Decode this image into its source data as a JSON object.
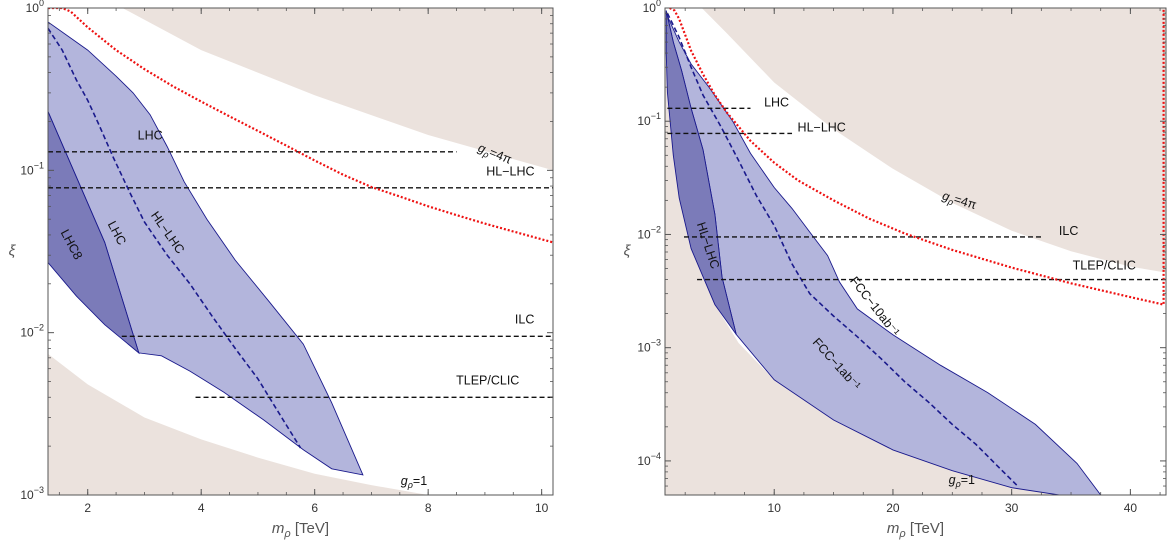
{
  "colors": {
    "excluded": "#ebe2dd",
    "band_dark": "#7b7bb9",
    "band_light": "#b3b5dc",
    "band_edge": "#1a1a8c",
    "central": "#1a1a8c",
    "naturalness": "#ee1111",
    "collider_line": "#111111",
    "axis": "#555555"
  },
  "chart_data": [
    {
      "type": "area",
      "xlabel_var": "m",
      "xlabel_sub": "ρ",
      "xlabel_unit": "[TeV]",
      "ylabel": "ξ",
      "xlim": [
        1.3,
        10.2
      ],
      "ylim": [
        0.001,
        1
      ],
      "yscale": "log",
      "grid": false,
      "xticks": [
        2,
        4,
        6,
        8,
        10
      ],
      "xtick_labels": [
        "2",
        "4",
        "6",
        "8",
        "10"
      ],
      "yticks": [
        1,
        0.1,
        0.01,
        0.001
      ],
      "ytick_labels": [
        {
          "base": "10",
          "exp": "0"
        },
        {
          "base": "10",
          "exp": "−1"
        },
        {
          "base": "10",
          "exp": "−2"
        },
        {
          "base": "10",
          "exp": "−3"
        }
      ],
      "excluded_upper": [
        [
          1.3,
          1.6
        ],
        [
          2.5,
          1.05
        ],
        [
          4,
          0.55
        ],
        [
          6,
          0.29
        ],
        [
          8,
          0.165
        ],
        [
          10.2,
          0.1
        ]
      ],
      "excluded_lower": [
        [
          1.3,
          0.0074
        ],
        [
          2,
          0.0048
        ],
        [
          3,
          0.003
        ],
        [
          4,
          0.0022
        ],
        [
          5,
          0.0017
        ],
        [
          6,
          0.00135
        ],
        [
          7,
          0.00115
        ],
        [
          8,
          0.001
        ]
      ],
      "bands": [
        {
          "name": "LHC8",
          "color_key": "band_dark",
          "points": [
            [
              1.3,
              0.23
            ],
            [
              2.3,
              0.036
            ],
            [
              2.9,
              0.0075
            ],
            [
              2.3,
              0.0112
            ],
            [
              1.8,
              0.0168
            ],
            [
              1.3,
              0.027
            ]
          ]
        },
        {
          "name": "LHC",
          "color_key": "band_light",
          "points": [
            [
              1.3,
              0.82
            ],
            [
              2.0,
              0.55
            ],
            [
              2.5,
              0.38
            ],
            [
              2.8,
              0.3
            ],
            [
              3.1,
              0.22
            ],
            [
              3.4,
              0.14
            ],
            [
              3.7,
              0.085
            ],
            [
              4.1,
              0.05
            ],
            [
              4.6,
              0.028
            ],
            [
              5.2,
              0.0155
            ],
            [
              5.8,
              0.0085
            ],
            [
              6.3,
              0.0037
            ],
            [
              6.85,
              0.00133
            ],
            [
              6.3,
              0.00145
            ],
            [
              5.8,
              0.0019
            ],
            [
              5.1,
              0.0029
            ],
            [
              4.4,
              0.0043
            ],
            [
              3.8,
              0.0058
            ],
            [
              3.3,
              0.0072
            ],
            [
              2.9,
              0.0075
            ],
            [
              2.3,
              0.036
            ],
            [
              1.3,
              0.23
            ]
          ]
        }
      ],
      "central": {
        "name": "HL-LHC",
        "points": [
          [
            1.3,
            0.75
          ],
          [
            1.55,
            0.55
          ],
          [
            1.8,
            0.36
          ],
          [
            2.0,
            0.27
          ],
          [
            2.2,
            0.19
          ],
          [
            2.45,
            0.12
          ],
          [
            2.75,
            0.072
          ],
          [
            3.0,
            0.048
          ],
          [
            3.4,
            0.03
          ],
          [
            3.8,
            0.02
          ],
          [
            4.2,
            0.0125
          ],
          [
            4.6,
            0.008
          ],
          [
            5.0,
            0.0052
          ],
          [
            5.3,
            0.0035
          ],
          [
            5.5,
            0.0027
          ],
          [
            5.75,
            0.00195
          ]
        ]
      },
      "naturalness": {
        "name": "gρ=4π",
        "points": [
          [
            1.3,
            1.0
          ],
          [
            1.55,
            1.0
          ],
          [
            1.7,
            0.95
          ],
          [
            2.0,
            0.76
          ],
          [
            2.5,
            0.55
          ],
          [
            3.0,
            0.42
          ],
          [
            3.5,
            0.33
          ],
          [
            4.0,
            0.265
          ],
          [
            4.5,
            0.215
          ],
          [
            5.0,
            0.175
          ],
          [
            5.5,
            0.142
          ],
          [
            6.0,
            0.115
          ],
          [
            6.5,
            0.094
          ],
          [
            7.0,
            0.079
          ],
          [
            7.5,
            0.069
          ],
          [
            8.0,
            0.06
          ],
          [
            8.5,
            0.053
          ],
          [
            9.0,
            0.047
          ],
          [
            9.5,
            0.042
          ],
          [
            10.2,
            0.036
          ]
        ]
      },
      "collider_lines": [
        {
          "name": "LHC",
          "xi": 0.13,
          "x_from": 1.3,
          "x_to": 8.5
        },
        {
          "name": "HL-LHC",
          "xi": 0.078,
          "x_from": 1.3,
          "x_to": 10.2
        },
        {
          "name": "ILC",
          "xi": 0.0095,
          "x_from": 2.6,
          "x_to": 10.2
        },
        {
          "name": "TLEP/CLIC",
          "xi": 0.004,
          "x_from": 3.9,
          "x_to": 10.2
        }
      ],
      "labels": {
        "lhc_line": "LHC",
        "hllhc_line": "HL−LHC",
        "ilc_line": "ILC",
        "tlep_line": "TLEP/CLIC",
        "g4pi": "gρ=4π",
        "g1": "gρ=1",
        "band_lhc8": "LHC8",
        "band_lhc": "LHC",
        "band_hllhc": "HL−LHC"
      }
    },
    {
      "type": "area",
      "xlabel_var": "m",
      "xlabel_sub": "ρ",
      "xlabel_unit": "[TeV]",
      "ylabel": "ξ",
      "xlim": [
        0.8,
        43
      ],
      "ylim": [
        5e-05,
        1
      ],
      "yscale": "log",
      "grid": false,
      "xticks": [
        10,
        20,
        30,
        40
      ],
      "xtick_labels": [
        "10",
        "20",
        "30",
        "40"
      ],
      "yticks": [
        1,
        0.1,
        0.01,
        0.001,
        0.0001
      ],
      "ytick_labels": [
        {
          "base": "10",
          "exp": "0"
        },
        {
          "base": "10",
          "exp": "−1"
        },
        {
          "base": "10",
          "exp": "−2"
        },
        {
          "base": "10",
          "exp": "−3"
        },
        {
          "base": "10",
          "exp": "−4"
        }
      ],
      "excluded_upper": [
        [
          3.5,
          1.1
        ],
        [
          6,
          0.6
        ],
        [
          10,
          0.22
        ],
        [
          15,
          0.085
        ],
        [
          20,
          0.038
        ],
        [
          25,
          0.019
        ],
        [
          30,
          0.0108
        ],
        [
          35,
          0.0071
        ],
        [
          40,
          0.0052
        ],
        [
          43,
          0.0046
        ]
      ],
      "excluded_lower": [
        [
          0.8,
          0.45
        ],
        [
          1,
          0.18
        ],
        [
          1.5,
          0.05
        ],
        [
          2,
          0.021
        ],
        [
          3,
          0.0075
        ],
        [
          5,
          0.0024
        ],
        [
          7,
          0.0011
        ],
        [
          10,
          0.00052
        ],
        [
          15,
          0.00023
        ],
        [
          20,
          0.000125
        ],
        [
          25,
          8.2e-05
        ],
        [
          30,
          5.8e-05
        ],
        [
          34,
          5e-05
        ]
      ],
      "bands": [
        {
          "name": "HL-LHC",
          "color_key": "band_dark",
          "points": [
            [
              0.9,
              0.95
            ],
            [
              1.5,
              0.5
            ],
            [
              2.2,
              0.28
            ],
            [
              3.0,
              0.13
            ],
            [
              4.0,
              0.056
            ],
            [
              5.0,
              0.015
            ],
            [
              5.6,
              0.0042
            ],
            [
              6.8,
              0.00131
            ],
            [
              5.0,
              0.0024
            ],
            [
              3.0,
              0.0075
            ],
            [
              2.0,
              0.021
            ],
            [
              1.5,
              0.05
            ],
            [
              1.0,
              0.18
            ],
            [
              0.9,
              0.4
            ]
          ]
        },
        {
          "name": "FCC",
          "color_key": "band_light",
          "points": [
            [
              1.0,
              0.85
            ],
            [
              2.0,
              0.5
            ],
            [
              3.0,
              0.32
            ],
            [
              4.5,
              0.2
            ],
            [
              6.5,
              0.1
            ],
            [
              8.0,
              0.052
            ],
            [
              10.0,
              0.026
            ],
            [
              11.5,
              0.017
            ],
            [
              13.0,
              0.0105
            ],
            [
              14.5,
              0.0065
            ],
            [
              15.5,
              0.0038
            ],
            [
              17.0,
              0.0022
            ],
            [
              20.0,
              0.0013
            ],
            [
              24.0,
              0.0007
            ],
            [
              28.0,
              0.0004
            ],
            [
              32.0,
              0.00021
            ],
            [
              35.5,
              9.5e-05
            ],
            [
              37.5,
              5e-05
            ],
            [
              34,
              5e-05
            ],
            [
              30,
              5.8e-05
            ],
            [
              25,
              8.2e-05
            ],
            [
              20,
              0.000125
            ],
            [
              15,
              0.00023
            ],
            [
              10,
              0.00052
            ],
            [
              6.8,
              0.00131
            ],
            [
              5.6,
              0.0042
            ],
            [
              5.0,
              0.015
            ],
            [
              4.0,
              0.056
            ],
            [
              3.0,
              0.13
            ],
            [
              2.2,
              0.28
            ],
            [
              1.5,
              0.5
            ]
          ]
        }
      ],
      "central": {
        "name": "FCC-1ab-1",
        "points": [
          [
            1.0,
            0.9
          ],
          [
            2.0,
            0.55
          ],
          [
            3.0,
            0.3
          ],
          [
            4.0,
            0.17
          ],
          [
            5.5,
            0.09
          ],
          [
            7.0,
            0.045
          ],
          [
            8.5,
            0.022
          ],
          [
            10.0,
            0.012
          ],
          [
            11.5,
            0.0055
          ],
          [
            13.0,
            0.003
          ],
          [
            15.0,
            0.0019
          ],
          [
            17.0,
            0.00125
          ],
          [
            19.0,
            0.0008
          ],
          [
            21.0,
            0.0005
          ],
          [
            23.0,
            0.00033
          ],
          [
            25.0,
            0.00021
          ],
          [
            27.0,
            0.00014
          ],
          [
            29.0,
            8.6e-05
          ],
          [
            30.5,
            6e-05
          ]
        ]
      },
      "naturalness": {
        "name": "gρ=4π",
        "points": [
          [
            1.2,
            1.0
          ],
          [
            1.6,
            0.95
          ],
          [
            2.0,
            0.8
          ],
          [
            3.0,
            0.42
          ],
          [
            4.0,
            0.26
          ],
          [
            5.0,
            0.17
          ],
          [
            6.0,
            0.12
          ],
          [
            8.0,
            0.067
          ],
          [
            10.0,
            0.043
          ],
          [
            12.0,
            0.03
          ],
          [
            15.0,
            0.02
          ],
          [
            18.0,
            0.0138
          ],
          [
            21.0,
            0.0102
          ],
          [
            25.0,
            0.0073
          ],
          [
            30.0,
            0.0051
          ],
          [
            35.0,
            0.0037
          ],
          [
            40.0,
            0.0028
          ],
          [
            42.8,
            0.0024
          ],
          [
            42.8,
            1.0
          ]
        ]
      },
      "collider_lines": [
        {
          "name": "LHC",
          "xi": 0.13,
          "x_from": 1.0,
          "x_to": 8.0
        },
        {
          "name": "HL-LHC",
          "xi": 0.078,
          "x_from": 1.0,
          "x_to": 11.5
        },
        {
          "name": "ILC",
          "xi": 0.0095,
          "x_from": 2.4,
          "x_to": 32.5
        },
        {
          "name": "TLEP/CLIC",
          "xi": 0.004,
          "x_from": 3.5,
          "x_to": 43
        }
      ],
      "labels": {
        "lhc_line": "LHC",
        "hllhc_line": "HL−LHC",
        "ilc_line": "ILC",
        "tlep_line": "TLEP/CLIC",
        "g4pi": "gρ=4π",
        "g1": "gρ=1",
        "band_hllhc": "HL−LHC",
        "band_fcc1": "FCC−1ab⁻¹",
        "band_fcc10": "FCC−10ab⁻¹"
      }
    }
  ]
}
